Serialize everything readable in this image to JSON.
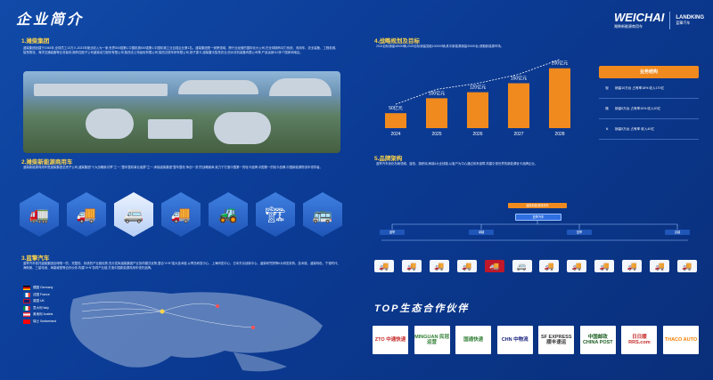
{
  "header": {
    "title": "企业简介",
    "brand_name": "WEICHAI",
    "brand_sub": "潍柴新能源商用车",
    "partner_brand": "LANDKING",
    "partner_sub": "蓝擎汽车"
  },
  "s1": {
    "title": "1.潍柴集团",
    "text": "潍柴集团创建于1946年,全球员工10万人,2023年营业收入为一家,世界500强第1,中国机械500强第1,中国机械工业百强企业第1名。潍柴集团是一家跨领域、跨行业经营的国际化大公司,在全球拥有动力系统、商用车、农业装备、工程机械、智慧物流、海洋交通装备等业务板块,拥有控股子公司潍柴动力股份有限公司,陕西法士特齿轮有限公司,陕西汉德车桥有限公司,扬子重卡,潍柴雷沃智慧农业,西州农机装备有限公司等,产品远销110多个国家和地区。"
  },
  "s2": {
    "title": "2.潍柴新能源商用车",
    "text": "潍柴新能源商用车是潍柴集团全资子公司,潍柴集团\"十大战略新引擎\"之一,\"整车整机事业组群\"之一,承接潍柴集团\"整车整机 争创一流\"的战略使命,致力于打造中国第一的轻卡品牌,中国第一的轻卡品牌,中国新能源物流车领导者。"
  },
  "s3": {
    "title": "3.蓝擎汽车",
    "text": "蓝擎汽车依托潍柴集团全球唯一的、完整的、系统的产业链优势,充分发挥潍柴集团产业协同模式优势,整合\"4+N\"强大技术链,以青岛研发中心、上海研发中心、日本东京创新中心、潍柴研究院等6大研发机构、技术链、潍柴特色、宁德时代、海斯美、三星电池、海康威视等合作伙伴,构建\"4+N\"协同产业链,打造中国新能源商用车领先品牌。"
  },
  "flags": [
    {
      "name": "德国 Germany",
      "c1": "#000000",
      "c2": "#dd0000"
    },
    {
      "name": "法国 France",
      "c1": "#0055a4",
      "c2": "#ef4135"
    },
    {
      "name": "英国 UK",
      "c1": "#012169",
      "c2": "#c8102e"
    },
    {
      "name": "意大利 Italy",
      "c1": "#009246",
      "c2": "#ce2b37"
    },
    {
      "name": "奥地利 Austria",
      "c1": "#ed2939",
      "c2": "#ffffff"
    },
    {
      "name": "瑞士 Switzerland",
      "c1": "#ff0000",
      "c2": "#ffffff"
    }
  ],
  "s4": {
    "title": "4.战略规划及目标",
    "text": "2024目标销量48000辆,2025目标销量突破100000辆,其中新能源销量30000台,领跑新能源市场。"
  },
  "chart_data": {
    "type": "bar",
    "categories": [
      "2024",
      "2025",
      "2026",
      "2027",
      "2028"
    ],
    "values": [
      50,
      100,
      120,
      150,
      200
    ],
    "labels": [
      "50亿元",
      "100亿元",
      "120亿元",
      "150亿元",
      "200亿元"
    ]
  },
  "business": {
    "title": "业务结构",
    "rows": [
      {
        "tag": "轻",
        "text": "销量10万台 占有率18% 收入170亿"
      },
      {
        "tag": "微",
        "text": "销量5万台 占有率10% 收入20亿"
      },
      {
        "tag": "N",
        "text": "销量5万台 占有率 收入40亿"
      }
    ]
  },
  "s5": {
    "title": "5.品牌架构",
    "text": "蓝擎汽车深化布局领域、蓝柏、旗帜纯,两端4大全线路,以客户为中心通过体系保障,构建引领世界的新能源轻卡品牌企业。",
    "root": "潍柴新能源商用车",
    "mid": "蓝擎汽车",
    "branches": [
      "潍擎",
      "卓越",
      "蓝擎",
      "嘉越"
    ]
  },
  "top": {
    "title": "TOP生态合作伙伴"
  },
  "partners": [
    "ZTO 中通快递",
    "MINGUAN 民冠运营",
    "国通快递",
    "CHN 中物流",
    "SF EXPRESS 顺丰速运",
    "中国邮政 CHINA POST",
    "日日顺 RRS.com",
    "THACO AUTO"
  ]
}
